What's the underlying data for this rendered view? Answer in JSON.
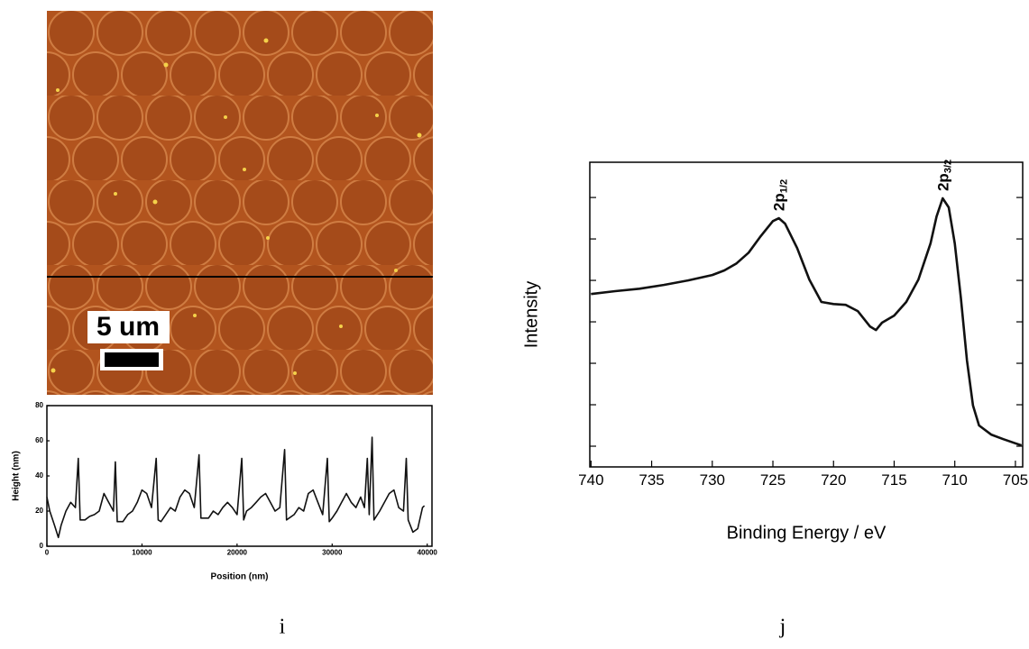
{
  "image": {
    "scale_bar_label": "5 um"
  },
  "panel_labels": [
    "i",
    "j"
  ],
  "chart_data": [
    {
      "type": "line",
      "xlabel": "Position (nm)",
      "ylabel": "Height (nm)",
      "color": "#111111",
      "x": [
        0,
        300,
        800,
        1200,
        1500,
        2000,
        2500,
        3000,
        3300,
        3500,
        4000,
        4500,
        5000,
        5500,
        6000,
        6500,
        7000,
        7200,
        7400,
        8000,
        8500,
        9000,
        9500,
        10000,
        10500,
        11000,
        11500,
        11700,
        12000,
        12500,
        13000,
        13500,
        14000,
        14500,
        15000,
        15500,
        16000,
        16200,
        17000,
        17500,
        18000,
        18500,
        19000,
        19500,
        20000,
        20500,
        20700,
        21000,
        21500,
        22000,
        22500,
        23000,
        23500,
        24000,
        24500,
        25000,
        25200,
        26000,
        26500,
        27000,
        27500,
        28000,
        28500,
        29000,
        29500,
        29700,
        30000,
        30500,
        31000,
        31500,
        32000,
        32500,
        33000,
        33400,
        33700,
        33900,
        34200,
        34400,
        35000,
        35500,
        36000,
        36500,
        37000,
        37500,
        37800,
        38000,
        38500,
        39000,
        39500,
        39700
      ],
      "values": [
        28,
        20,
        12,
        5,
        12,
        20,
        25,
        22,
        50,
        15,
        15,
        17,
        18,
        20,
        30,
        25,
        20,
        48,
        14,
        14,
        18,
        20,
        25,
        32,
        30,
        22,
        50,
        15,
        14,
        18,
        22,
        20,
        28,
        32,
        30,
        22,
        52,
        16,
        16,
        20,
        18,
        22,
        25,
        22,
        18,
        50,
        15,
        20,
        22,
        25,
        28,
        30,
        25,
        20,
        22,
        55,
        15,
        18,
        22,
        20,
        30,
        32,
        25,
        18,
        50,
        14,
        16,
        20,
        25,
        30,
        25,
        22,
        28,
        22,
        50,
        18,
        62,
        15,
        20,
        25,
        30,
        32,
        22,
        20,
        50,
        15,
        8,
        10,
        22,
        23
      ],
      "xlim": [
        0,
        40500
      ],
      "xticks": [
        0,
        10000,
        20000,
        30000,
        40000
      ],
      "ylim": [
        0,
        80
      ],
      "yticks": [
        0,
        20,
        40,
        60,
        80
      ],
      "show_ytick_labels": true
    },
    {
      "type": "line",
      "xlabel": "Binding Energy / eV",
      "ylabel": "Intensity",
      "color": "#111111",
      "x": [
        740,
        738,
        736,
        734,
        732,
        730,
        729,
        728,
        727,
        726,
        725,
        724.5,
        724,
        723,
        722,
        721,
        720,
        719,
        718,
        717,
        716.5,
        716,
        715,
        714,
        713,
        712,
        711.5,
        711,
        710.5,
        710,
        709.5,
        709,
        708.5,
        708,
        707,
        706,
        705,
        704.5
      ],
      "values": [
        4.17,
        4.24,
        4.3,
        4.39,
        4.5,
        4.63,
        4.74,
        4.91,
        5.17,
        5.57,
        5.93,
        6.0,
        5.87,
        5.28,
        4.52,
        3.98,
        3.93,
        3.91,
        3.76,
        3.39,
        3.3,
        3.48,
        3.65,
        3.98,
        4.52,
        5.39,
        6.04,
        6.48,
        6.26,
        5.39,
        4.09,
        2.57,
        1.48,
        1.0,
        0.78,
        0.67,
        0.57,
        0.52
      ],
      "xlim": [
        740.1,
        704.4
      ],
      "xticks": [
        740,
        735,
        730,
        725,
        720,
        715,
        710,
        705
      ],
      "ylim": [
        0,
        7.35
      ],
      "yticks": [
        0.5,
        1.5,
        2.5,
        3.5,
        4.5,
        5.5,
        6.5
      ],
      "show_ytick_labels": false,
      "annotations": [
        {
          "text": "2p",
          "sub": "1/2",
          "x": 724.5,
          "y": 6.0
        },
        {
          "text": "2p",
          "sub": "3/2",
          "x": 711,
          "y": 6.48
        }
      ]
    }
  ]
}
